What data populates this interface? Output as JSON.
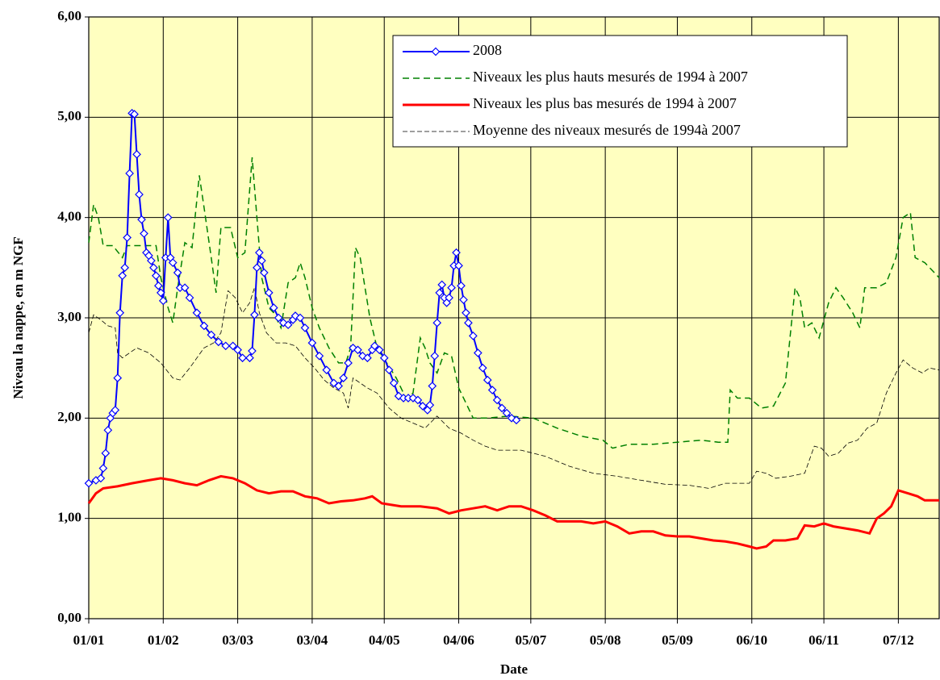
{
  "chart_data": {
    "type": "line",
    "x_label": "Date",
    "y_label": "Niveau la nappe, en m NGF",
    "xlim": [
      0,
      354
    ],
    "ylim": [
      0,
      6
    ],
    "xticks": [
      {
        "value": 0,
        "label": "01/01"
      },
      {
        "value": 31,
        "label": "01/02"
      },
      {
        "value": 62,
        "label": "03/03"
      },
      {
        "value": 93,
        "label": "03/04"
      },
      {
        "value": 123,
        "label": "04/05"
      },
      {
        "value": 154,
        "label": "04/06"
      },
      {
        "value": 184,
        "label": "05/07"
      },
      {
        "value": 215,
        "label": "05/08"
      },
      {
        "value": 245,
        "label": "05/09"
      },
      {
        "value": 276,
        "label": "06/10"
      },
      {
        "value": 306,
        "label": "06/11"
      },
      {
        "value": 337,
        "label": "07/12"
      }
    ],
    "yticks": [
      {
        "value": 0,
        "label": "0,00"
      },
      {
        "value": 1,
        "label": "1,00"
      },
      {
        "value": 2,
        "label": "2,00"
      },
      {
        "value": 3,
        "label": "3,00"
      },
      {
        "value": 4,
        "label": "4,00"
      },
      {
        "value": 5,
        "label": "5,00"
      },
      {
        "value": 6,
        "label": "6,00"
      }
    ],
    "grid": true,
    "background": "#ffffc0",
    "legend": "upper right",
    "series": [
      {
        "name": "2008",
        "color": "#0000ff",
        "style": "solid",
        "width": 2,
        "marker": "diamond",
        "x": [
          0,
          3,
          5,
          6,
          7,
          8,
          9,
          10,
          11,
          12,
          13,
          14,
          15,
          16,
          17,
          18,
          19,
          20,
          21,
          22,
          23,
          24,
          25,
          26,
          27,
          28,
          29,
          30,
          31,
          32,
          33,
          34,
          35,
          37,
          38,
          40,
          42,
          45,
          48,
          51,
          54,
          57,
          60,
          62,
          64,
          67,
          68,
          69,
          70,
          71,
          72,
          73,
          75,
          77,
          79,
          81,
          83,
          85,
          86,
          88,
          90,
          93,
          96,
          99,
          102,
          104,
          106,
          108,
          110,
          112,
          114,
          116,
          118,
          119,
          121,
          123,
          125,
          127,
          129,
          131,
          133,
          135,
          137,
          139,
          141,
          142,
          143,
          144,
          145,
          146,
          147,
          148,
          149,
          150,
          151,
          152,
          153,
          154,
          155,
          156,
          157,
          158,
          160,
          162,
          164,
          166,
          168,
          170,
          172,
          174,
          176,
          178
        ],
        "values": [
          1.35,
          1.38,
          1.4,
          1.5,
          1.65,
          1.88,
          2.0,
          2.05,
          2.08,
          2.4,
          3.05,
          3.42,
          3.5,
          3.8,
          4.44,
          5.04,
          5.03,
          4.63,
          4.23,
          3.98,
          3.84,
          3.65,
          3.62,
          3.57,
          3.5,
          3.42,
          3.32,
          3.25,
          3.17,
          3.6,
          4.0,
          3.6,
          3.55,
          3.45,
          3.3,
          3.3,
          3.2,
          3.05,
          2.92,
          2.83,
          2.76,
          2.72,
          2.72,
          2.68,
          2.6,
          2.6,
          2.67,
          3.03,
          3.5,
          3.65,
          3.57,
          3.45,
          3.25,
          3.1,
          3.0,
          2.95,
          2.93,
          2.98,
          3.02,
          3.0,
          2.9,
          2.75,
          2.62,
          2.48,
          2.35,
          2.32,
          2.4,
          2.55,
          2.7,
          2.68,
          2.62,
          2.6,
          2.68,
          2.72,
          2.68,
          2.6,
          2.48,
          2.35,
          2.22,
          2.2,
          2.2,
          2.2,
          2.18,
          2.12,
          2.08,
          2.13,
          2.32,
          2.62,
          2.95,
          3.25,
          3.33,
          3.2,
          3.15,
          3.2,
          3.3,
          3.52,
          3.65,
          3.52,
          3.32,
          3.18,
          3.05,
          2.95,
          2.82,
          2.65,
          2.5,
          2.38,
          2.28,
          2.18,
          2.1,
          2.05,
          2.0,
          1.98
        ]
      },
      {
        "name": "Niveaux les plus hauts mesurés de 1994 à 2007",
        "color": "#008000",
        "style": "dashed",
        "width": 1.5,
        "x": [
          0,
          2,
          4,
          6,
          10,
          14,
          16,
          20,
          24,
          28,
          30,
          33,
          35,
          37,
          40,
          43,
          46,
          48,
          51,
          53,
          55,
          59,
          62,
          65,
          68,
          70,
          72,
          75,
          77,
          80,
          83,
          86,
          88,
          90,
          93,
          96,
          100,
          104,
          107,
          109,
          111,
          113,
          115,
          117,
          120,
          124,
          128,
          132,
          135,
          138,
          140,
          142,
          145,
          148,
          151,
          154,
          157,
          160,
          166,
          175,
          185,
          195,
          205,
          214,
          218,
          225,
          235,
          245,
          255,
          262,
          266,
          267,
          270,
          275,
          280,
          285,
          290,
          294,
          296,
          298,
          301,
          304,
          308,
          311,
          314,
          318,
          321,
          323,
          328,
          332,
          336,
          339,
          342,
          344,
          348,
          352,
          354
        ],
        "values": [
          3.75,
          4.13,
          4.0,
          3.72,
          3.72,
          3.6,
          3.72,
          3.72,
          3.72,
          3.72,
          3.4,
          3.1,
          2.95,
          3.3,
          3.75,
          3.7,
          4.42,
          4.1,
          3.6,
          3.25,
          3.9,
          3.9,
          3.6,
          3.65,
          4.6,
          4.0,
          3.4,
          3.1,
          3.05,
          2.9,
          3.35,
          3.4,
          3.55,
          3.4,
          3.1,
          2.9,
          2.7,
          2.55,
          2.55,
          2.7,
          3.7,
          3.6,
          3.3,
          3.0,
          2.7,
          2.55,
          2.4,
          2.2,
          2.25,
          2.8,
          2.7,
          2.55,
          2.45,
          2.65,
          2.62,
          2.3,
          2.15,
          2.0,
          2.0,
          2.02,
          2.0,
          1.9,
          1.82,
          1.78,
          1.7,
          1.74,
          1.74,
          1.76,
          1.78,
          1.76,
          1.76,
          2.28,
          2.2,
          2.2,
          2.1,
          2.12,
          2.35,
          3.3,
          3.2,
          2.9,
          2.95,
          2.8,
          3.15,
          3.3,
          3.2,
          3.05,
          2.9,
          3.3,
          3.3,
          3.35,
          3.6,
          4.0,
          4.05,
          3.6,
          3.55,
          3.45,
          3.4
        ]
      },
      {
        "name": "Niveaux les plus bas mesurés de 1994 à 2007",
        "color": "#ff0000",
        "style": "solid",
        "width": 3,
        "x": [
          0,
          3,
          6,
          12,
          18,
          25,
          30,
          35,
          40,
          45,
          50,
          55,
          60,
          65,
          70,
          75,
          80,
          85,
          90,
          95,
          100,
          105,
          110,
          115,
          118,
          122,
          130,
          138,
          145,
          150,
          155,
          160,
          165,
          170,
          175,
          180,
          185,
          190,
          195,
          200,
          205,
          210,
          215,
          220,
          225,
          230,
          235,
          240,
          245,
          250,
          255,
          260,
          265,
          270,
          275,
          278,
          282,
          285,
          290,
          295,
          298,
          302,
          306,
          310,
          315,
          320,
          325,
          328,
          331,
          334,
          337,
          341,
          345,
          348,
          354
        ],
        "values": [
          1.15,
          1.25,
          1.3,
          1.32,
          1.35,
          1.38,
          1.4,
          1.38,
          1.35,
          1.33,
          1.38,
          1.42,
          1.4,
          1.35,
          1.28,
          1.25,
          1.27,
          1.27,
          1.22,
          1.2,
          1.15,
          1.17,
          1.18,
          1.2,
          1.22,
          1.15,
          1.12,
          1.12,
          1.1,
          1.05,
          1.08,
          1.1,
          1.12,
          1.08,
          1.12,
          1.12,
          1.08,
          1.03,
          0.97,
          0.97,
          0.97,
          0.95,
          0.97,
          0.92,
          0.85,
          0.87,
          0.87,
          0.83,
          0.82,
          0.82,
          0.8,
          0.78,
          0.77,
          0.75,
          0.72,
          0.7,
          0.72,
          0.78,
          0.78,
          0.8,
          0.93,
          0.92,
          0.95,
          0.92,
          0.9,
          0.88,
          0.85,
          1.0,
          1.05,
          1.12,
          1.28,
          1.25,
          1.22,
          1.18,
          1.18
        ]
      },
      {
        "name": "Moyenne des niveaux mesurés de 1994à 2007",
        "color": "#000000",
        "style": "dashed",
        "width": 0.8,
        "x": [
          0,
          2,
          5,
          8,
          11,
          12,
          14,
          17,
          20,
          25,
          30,
          35,
          38,
          42,
          45,
          48,
          52,
          55,
          58,
          61,
          64,
          67,
          69,
          71,
          74,
          78,
          82,
          86,
          90,
          94,
          98,
          102,
          106,
          108,
          110,
          113,
          116,
          120,
          125,
          130,
          135,
          140,
          145,
          150,
          155,
          160,
          165,
          170,
          180,
          190,
          200,
          210,
          220,
          230,
          240,
          250,
          258,
          265,
          275,
          278,
          282,
          286,
          292,
          298,
          302,
          305,
          308,
          312,
          316,
          320,
          324,
          328,
          332,
          336,
          339,
          343,
          347,
          350,
          354
        ],
        "values": [
          2.85,
          3.03,
          2.98,
          2.92,
          2.9,
          2.65,
          2.6,
          2.65,
          2.7,
          2.65,
          2.55,
          2.4,
          2.38,
          2.5,
          2.6,
          2.7,
          2.75,
          2.85,
          3.27,
          3.2,
          3.05,
          3.15,
          3.3,
          3.05,
          2.85,
          2.75,
          2.75,
          2.72,
          2.6,
          2.5,
          2.38,
          2.3,
          2.25,
          2.1,
          2.4,
          2.35,
          2.3,
          2.25,
          2.1,
          2.0,
          1.95,
          1.9,
          2.02,
          1.9,
          1.85,
          1.78,
          1.72,
          1.68,
          1.68,
          1.62,
          1.52,
          1.45,
          1.42,
          1.38,
          1.34,
          1.33,
          1.3,
          1.35,
          1.35,
          1.47,
          1.45,
          1.4,
          1.42,
          1.45,
          1.72,
          1.7,
          1.62,
          1.65,
          1.75,
          1.78,
          1.9,
          1.95,
          2.25,
          2.45,
          2.58,
          2.5,
          2.45,
          2.5,
          2.48
        ]
      }
    ]
  }
}
